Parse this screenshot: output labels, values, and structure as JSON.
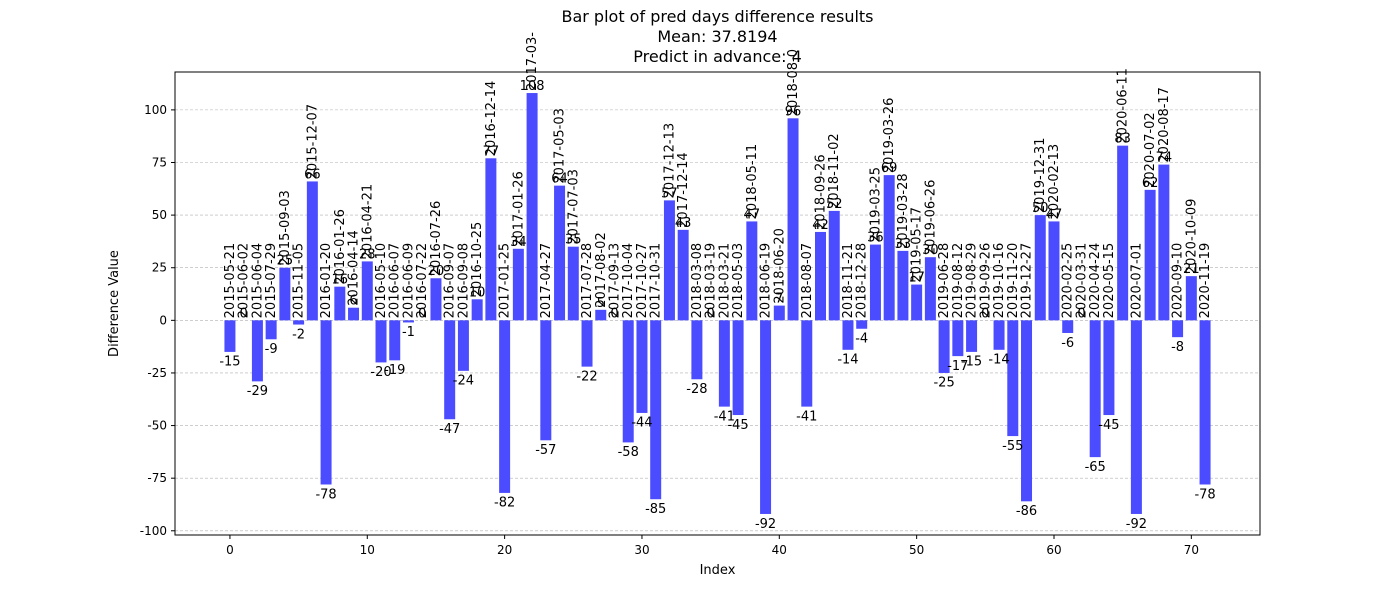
{
  "chart_data": {
    "type": "bar",
    "title_lines": [
      "Bar plot of pred days difference results",
      "Mean: 37.8194",
      "Predict in advance: 4"
    ],
    "xlabel": "Index",
    "ylabel": "Difference Value",
    "xlim": [
      -4,
      75
    ],
    "ylim": [
      -102,
      118
    ],
    "xticks": [
      0,
      10,
      20,
      30,
      40,
      50,
      60,
      70
    ],
    "yticks": [
      -100,
      -75,
      -50,
      -25,
      0,
      25,
      50,
      75,
      100
    ],
    "grid": "y-dashed",
    "bar_color": "#4b4bff",
    "x": [
      0,
      1,
      2,
      3,
      4,
      5,
      6,
      7,
      8,
      9,
      10,
      11,
      12,
      13,
      14,
      15,
      16,
      17,
      18,
      19,
      20,
      21,
      22,
      23,
      24,
      25,
      26,
      27,
      28,
      29,
      30,
      31,
      32,
      33,
      34,
      35,
      36,
      37,
      38,
      39,
      40,
      41,
      42,
      43,
      44,
      45,
      46,
      47,
      48,
      49,
      50,
      51,
      52,
      53,
      54,
      55,
      56,
      57,
      58,
      59,
      60,
      61,
      62,
      63,
      64,
      65,
      66,
      67,
      68,
      69,
      70,
      71
    ],
    "values": [
      -15,
      0,
      -29,
      -9,
      25,
      -2,
      66,
      -78,
      16,
      6,
      28,
      -20,
      -19,
      -1,
      0,
      20,
      -47,
      -24,
      10,
      77,
      -82,
      34,
      108,
      -57,
      64,
      35,
      -22,
      5,
      0,
      -58,
      -44,
      -85,
      57,
      43,
      -28,
      0,
      -41,
      -45,
      47,
      -92,
      7,
      96,
      -41,
      42,
      52,
      -14,
      -4,
      36,
      69,
      33,
      17,
      30,
      -25,
      -17,
      -15,
      0,
      -14,
      -55,
      -86,
      50,
      47,
      -6,
      0,
      -65,
      -45,
      83,
      -92,
      62,
      74,
      -8,
      21,
      -78
    ],
    "value_labels": [
      "-15",
      "0",
      "-29",
      "-9",
      "25",
      "-2",
      "66",
      "-78",
      "16",
      "6",
      "28",
      "-20",
      "-19",
      "-1",
      "0",
      "20",
      "-47",
      "-24",
      "10",
      "77",
      "-82",
      "34",
      "108",
      "-57",
      "64",
      "35",
      "-22",
      "5",
      "0",
      "-58",
      "-44",
      "-85",
      "57",
      "43",
      "-28",
      "0",
      "-41",
      "-45",
      "47",
      "-92",
      "7",
      "96",
      "-41",
      "42",
      "52",
      "-14",
      "-4",
      "36",
      "69",
      "33",
      "17",
      "30",
      "-25",
      "-17",
      "-15",
      "0",
      "-14",
      "-55",
      "-86",
      "50",
      "47",
      "-6",
      "0",
      "-65",
      "-45",
      "83",
      "-92",
      "62",
      "74",
      "-8",
      "21",
      "-78"
    ],
    "date_labels": [
      "2015-05-21",
      "2015-06-02",
      "2015-06-04",
      "2015-07-29",
      "2015-09-03",
      "2015-11-05",
      "2015-12-07",
      "2016-01-20",
      "2016-01-26",
      "2016-04-14",
      "2016-04-21",
      "2016-05-10",
      "2016-06-07",
      "2016-06-09",
      "2016-07-22",
      "2016-07-26",
      "2016-09-07",
      "2016-09-08",
      "2016-10-25",
      "2016-12-14",
      "2017-01-25",
      "2017-01-26",
      "2017-03-",
      "2017-04-27",
      "2017-05-03",
      "2017-07-03",
      "2017-07-28",
      "2017-08-02",
      "2017-09-13",
      "2017-10-04",
      "2017-10-27",
      "2017-10-31",
      "2017-12-13",
      "2017-12-14",
      "2018-03-08",
      "2018-03-19",
      "2018-03-21",
      "2018-05-03",
      "2018-05-11",
      "2018-06-19",
      "2018-06-20",
      "2018-08-0",
      "2018-08-07",
      "2018-09-26",
      "2018-11-02",
      "2018-11-21",
      "2018-12-28",
      "2019-03-25",
      "2019-03-26",
      "2019-03-28",
      "2019-05-17",
      "2019-06-26",
      "2019-06-28",
      "2019-08-12",
      "2019-08-29",
      "2019-09-26",
      "2019-10-16",
      "2019-11-20",
      "2019-12-27",
      "2019-12-31",
      "2020-02-13",
      "2020-02-25",
      "2020-03-31",
      "2020-04-24",
      "2020-05-15",
      "2020-06-11",
      "2020-07-01",
      "2020-07-02",
      "2020-08-17",
      "2020-09-10",
      "2020-10-09",
      "2020-11-19"
    ]
  }
}
